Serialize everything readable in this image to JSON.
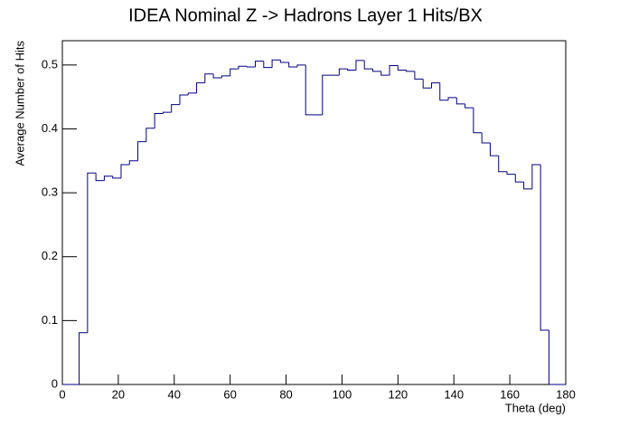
{
  "chart_data": {
    "type": "histogram",
    "title": "IDEA Nominal Z -> Hadrons Layer 1 Hits/BX",
    "x_label": "Theta (deg)",
    "y_label": "Average Number of Hits",
    "color": "#000080",
    "bins": [
      0,
      3,
      6,
      9,
      12,
      15,
      18,
      21,
      24,
      27,
      30,
      33,
      36,
      39,
      42,
      45,
      48,
      51,
      54,
      57,
      60,
      63,
      66,
      69,
      72,
      75,
      78,
      81,
      84,
      87,
      90,
      93,
      96,
      99,
      102,
      105,
      108,
      111,
      114,
      117,
      120,
      123,
      126,
      129,
      132,
      135,
      138,
      141,
      144,
      147,
      150,
      153,
      156,
      159,
      162,
      165,
      168,
      171,
      174,
      177,
      180
    ],
    "values": [
      0,
      0,
      0.081,
      0.331,
      0.319,
      0.326,
      0.323,
      0.344,
      0.35,
      0.38,
      0.401,
      0.424,
      0.426,
      0.438,
      0.453,
      0.456,
      0.472,
      0.486,
      0.48,
      0.483,
      0.494,
      0.498,
      0.497,
      0.506,
      0.496,
      0.508,
      0.504,
      0.497,
      0.5,
      0.422,
      0.422,
      0.484,
      0.484,
      0.494,
      0.492,
      0.507,
      0.494,
      0.49,
      0.484,
      0.499,
      0.492,
      0.49,
      0.478,
      0.464,
      0.472,
      0.445,
      0.449,
      0.439,
      0.433,
      0.394,
      0.378,
      0.358,
      0.333,
      0.329,
      0.317,
      0.306,
      0.344,
      0.085,
      0,
      0
    ],
    "xlim": [
      0,
      180
    ],
    "ylim": [
      0,
      0.538
    ],
    "xticks": [
      0,
      20,
      40,
      60,
      80,
      100,
      120,
      140,
      160,
      180
    ],
    "yticks": [
      0,
      0.1,
      0.2,
      0.3,
      0.4,
      0.5
    ]
  }
}
